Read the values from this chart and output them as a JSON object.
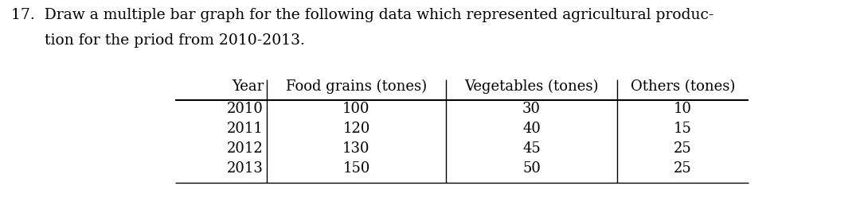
{
  "title_line1": "17.  Draw a multiple bar graph for the following data which represented agricultural produc-",
  "title_line2": "       tion for the priod from 2010-2013.",
  "headers": [
    "Year",
    "Food grains (tones)",
    "Vegetables (tones)",
    "Others (tones)"
  ],
  "rows": [
    [
      "2010",
      "100",
      "30",
      "10"
    ],
    [
      "2011",
      "120",
      "40",
      "15"
    ],
    [
      "2012",
      "130",
      "45",
      "25"
    ],
    [
      "2013",
      "150",
      "50",
      "25"
    ]
  ],
  "bg_color": "#ffffff",
  "text_color": "#000000",
  "font_size": 13,
  "title_font_size": 13.5,
  "fig_w": 10.8,
  "fig_h": 2.58,
  "dpi": 100
}
